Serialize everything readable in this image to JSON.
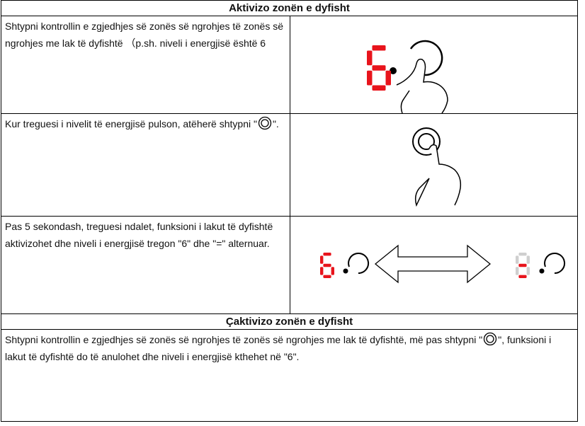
{
  "section1": {
    "title": "Aktivizo zonën e dyfisht",
    "rows": [
      {
        "text": [
          "Shtypni kontrollin e zgjedhjes së zonës së ngrohjes të zonës së ngrohjes me lak të dyfishtë （p.sh. niveli i energjisë është 6"
        ]
      },
      {
        "text": [
          "Kur treguesi i nivelit të energjisë pulson, atëherë shtypni \"",
          "\"."
        ]
      },
      {
        "text": [
          "Pas 5 sekondash, treguesi ndalet, funksioni i lakut të dyfishtë aktivizohet dhe niveli i energjisë tregon \"6\" dhe \"=\" alternuar."
        ]
      }
    ]
  },
  "section2": {
    "title": "Çaktivizo zonën e dyfisht",
    "text": [
      "Shtypni kontrollin e zgjedhjes së zonës së ngrohjes të zonës së ngrohjes me lak të dyfishtë, më pas shtypni \"",
      "\", funksioni i lakut të dyfishtë do të anulohet dhe niveli i energjisë kthehet në \"6\"."
    ]
  }
}
